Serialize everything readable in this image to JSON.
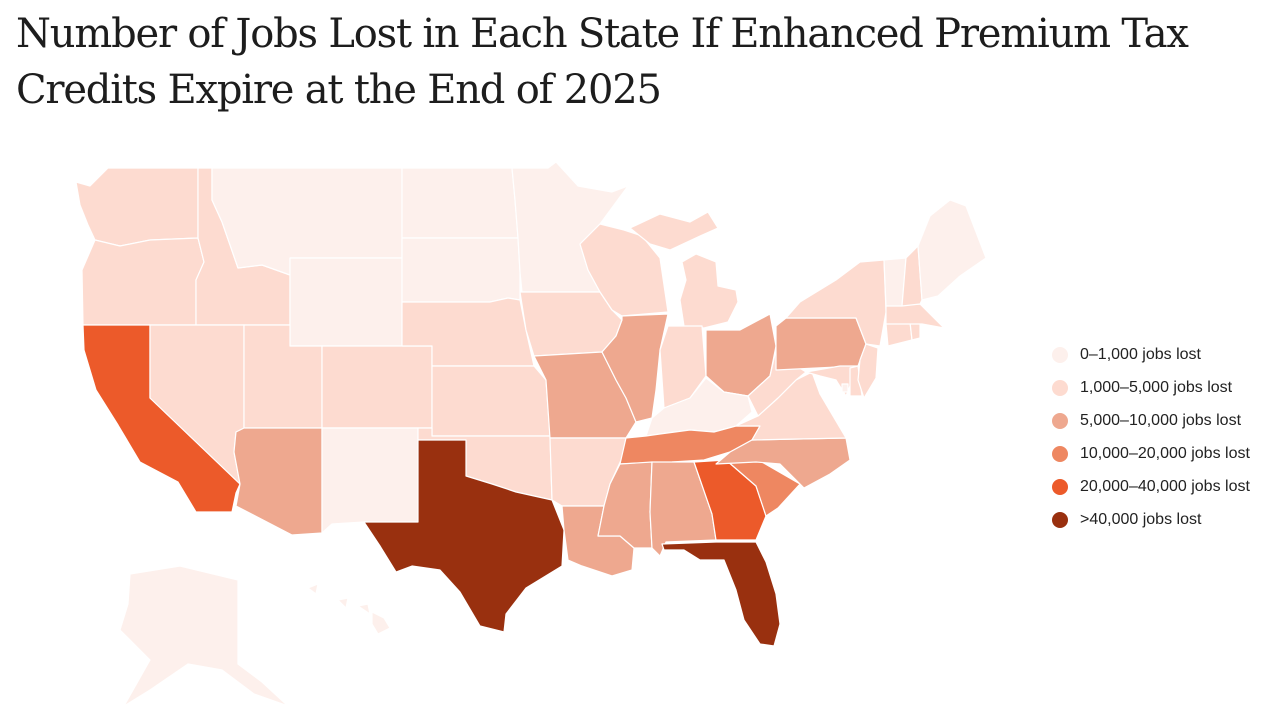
{
  "title": "Number of Jobs Lost in Each State If Enhanced Premium Tax Credits Expire at the End of 2025",
  "legend": [
    {
      "label": "0–1,000 jobs lost",
      "color": "#fdf0ec"
    },
    {
      "label": "1,000–5,000 jobs lost",
      "color": "#fddbd0"
    },
    {
      "label": "5,000–10,000 jobs lost",
      "color": "#eea88f"
    },
    {
      "label": "10,000–20,000 jobs lost",
      "color": "#ee8761"
    },
    {
      "label": "20,000–40,000 jobs lost",
      "color": "#ec5a2a"
    },
    {
      "label": ">40,000 jobs lost",
      "color": "#99300f"
    }
  ],
  "chart_data": {
    "type": "choropleth",
    "title": "Number of Jobs Lost in Each State If Enhanced Premium Tax Credits Expire at the End of 2025",
    "bins": [
      "0–1,000 jobs lost",
      "1,000–5,000 jobs lost",
      "5,000–10,000 jobs lost",
      "10,000–20,000 jobs lost",
      "20,000–40,000 jobs lost",
      ">40,000 jobs lost"
    ],
    "states": [
      {
        "state": "WA",
        "bin": 1
      },
      {
        "state": "OR",
        "bin": 1
      },
      {
        "state": "CA",
        "bin": 4
      },
      {
        "state": "ID",
        "bin": 1
      },
      {
        "state": "NV",
        "bin": 1
      },
      {
        "state": "MT",
        "bin": 0
      },
      {
        "state": "WY",
        "bin": 0
      },
      {
        "state": "UT",
        "bin": 1
      },
      {
        "state": "AZ",
        "bin": 2
      },
      {
        "state": "CO",
        "bin": 1
      },
      {
        "state": "NM",
        "bin": 0
      },
      {
        "state": "ND",
        "bin": 0
      },
      {
        "state": "SD",
        "bin": 0
      },
      {
        "state": "NE",
        "bin": 1
      },
      {
        "state": "KS",
        "bin": 1
      },
      {
        "state": "OK",
        "bin": 1
      },
      {
        "state": "TX",
        "bin": 5
      },
      {
        "state": "MN",
        "bin": 0
      },
      {
        "state": "IA",
        "bin": 1
      },
      {
        "state": "MO",
        "bin": 2
      },
      {
        "state": "AR",
        "bin": 1
      },
      {
        "state": "LA",
        "bin": 2
      },
      {
        "state": "WI",
        "bin": 1
      },
      {
        "state": "IL",
        "bin": 2
      },
      {
        "state": "MI",
        "bin": 1
      },
      {
        "state": "IN",
        "bin": 1
      },
      {
        "state": "OH",
        "bin": 2
      },
      {
        "state": "KY",
        "bin": 0
      },
      {
        "state": "TN",
        "bin": 3
      },
      {
        "state": "MS",
        "bin": 2
      },
      {
        "state": "AL",
        "bin": 2
      },
      {
        "state": "GA",
        "bin": 4
      },
      {
        "state": "FL",
        "bin": 5
      },
      {
        "state": "SC",
        "bin": 3
      },
      {
        "state": "NC",
        "bin": 2
      },
      {
        "state": "VA",
        "bin": 1
      },
      {
        "state": "WV",
        "bin": 1
      },
      {
        "state": "PA",
        "bin": 2
      },
      {
        "state": "NY",
        "bin": 1
      },
      {
        "state": "MD",
        "bin": 1
      },
      {
        "state": "DE",
        "bin": 1
      },
      {
        "state": "NJ",
        "bin": 1
      },
      {
        "state": "CT",
        "bin": 1
      },
      {
        "state": "RI",
        "bin": 1
      },
      {
        "state": "MA",
        "bin": 1
      },
      {
        "state": "VT",
        "bin": 0
      },
      {
        "state": "NH",
        "bin": 1
      },
      {
        "state": "ME",
        "bin": 0
      },
      {
        "state": "DC",
        "bin": 0
      },
      {
        "state": "AK",
        "bin": 0
      },
      {
        "state": "HI",
        "bin": 0
      }
    ]
  }
}
